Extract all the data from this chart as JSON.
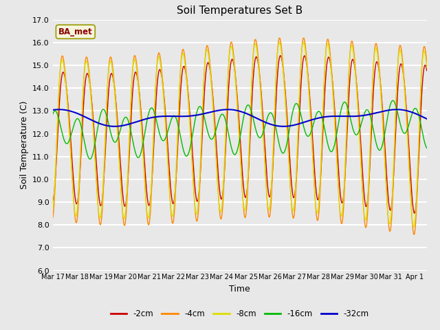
{
  "title": "Soil Temperatures Set B",
  "xlabel": "Time",
  "ylabel": "Soil Temperature (C)",
  "ylim": [
    6.0,
    17.0
  ],
  "yticks": [
    6.0,
    7.0,
    8.0,
    9.0,
    10.0,
    11.0,
    12.0,
    13.0,
    14.0,
    15.0,
    16.0,
    17.0
  ],
  "plot_bg_color": "#e8e8e8",
  "grid_color": "#ffffff",
  "legend_label": "BA_met",
  "legend_text_color": "#8b0000",
  "legend_bg": "#f5f5dc",
  "legend_border": "#999900",
  "line_colors": {
    "-2cm": "#cc0000",
    "-4cm": "#ff8800",
    "-8cm": "#dddd00",
    "-16cm": "#00bb00",
    "-32cm": "#0000cc"
  },
  "xtick_labels": [
    "Mar 17",
    "Mar 18",
    "Mar 19",
    "Mar 20",
    "Mar 21",
    "Mar 22",
    "Mar 23",
    "Mar 24",
    "Mar 25",
    "Mar 26",
    "Mar 27",
    "Mar 28",
    "Mar 29",
    "Mar 30",
    "Mar 31",
    "Apr 1"
  ],
  "n_points": 1500,
  "end_day": 15.5
}
